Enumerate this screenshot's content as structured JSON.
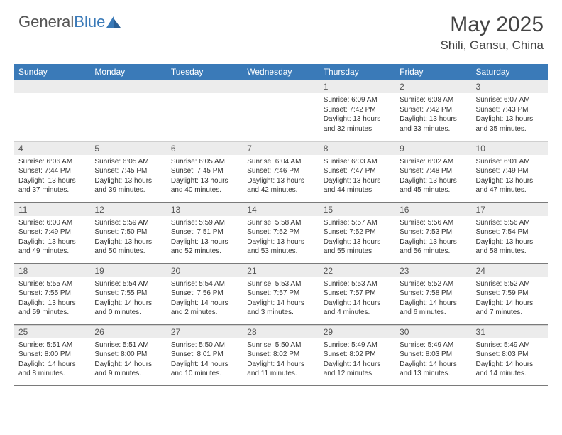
{
  "brand": {
    "general": "General",
    "blue": "Blue"
  },
  "title": "May 2025",
  "location": "Shili, Gansu, China",
  "colors": {
    "header_bg": "#3a7ab8",
    "header_fg": "#ffffff",
    "daynum_bg": "#ececec",
    "text": "#333333",
    "border": "#7a7a7a"
  },
  "weekday_headers": [
    "Sunday",
    "Monday",
    "Tuesday",
    "Wednesday",
    "Thursday",
    "Friday",
    "Saturday"
  ],
  "weeks": [
    [
      {
        "empty": true
      },
      {
        "empty": true
      },
      {
        "empty": true
      },
      {
        "empty": true
      },
      {
        "num": "1",
        "sunrise": "Sunrise: 6:09 AM",
        "sunset": "Sunset: 7:42 PM",
        "daylight": "Daylight: 13 hours and 32 minutes."
      },
      {
        "num": "2",
        "sunrise": "Sunrise: 6:08 AM",
        "sunset": "Sunset: 7:42 PM",
        "daylight": "Daylight: 13 hours and 33 minutes."
      },
      {
        "num": "3",
        "sunrise": "Sunrise: 6:07 AM",
        "sunset": "Sunset: 7:43 PM",
        "daylight": "Daylight: 13 hours and 35 minutes."
      }
    ],
    [
      {
        "num": "4",
        "sunrise": "Sunrise: 6:06 AM",
        "sunset": "Sunset: 7:44 PM",
        "daylight": "Daylight: 13 hours and 37 minutes."
      },
      {
        "num": "5",
        "sunrise": "Sunrise: 6:05 AM",
        "sunset": "Sunset: 7:45 PM",
        "daylight": "Daylight: 13 hours and 39 minutes."
      },
      {
        "num": "6",
        "sunrise": "Sunrise: 6:05 AM",
        "sunset": "Sunset: 7:45 PM",
        "daylight": "Daylight: 13 hours and 40 minutes."
      },
      {
        "num": "7",
        "sunrise": "Sunrise: 6:04 AM",
        "sunset": "Sunset: 7:46 PM",
        "daylight": "Daylight: 13 hours and 42 minutes."
      },
      {
        "num": "8",
        "sunrise": "Sunrise: 6:03 AM",
        "sunset": "Sunset: 7:47 PM",
        "daylight": "Daylight: 13 hours and 44 minutes."
      },
      {
        "num": "9",
        "sunrise": "Sunrise: 6:02 AM",
        "sunset": "Sunset: 7:48 PM",
        "daylight": "Daylight: 13 hours and 45 minutes."
      },
      {
        "num": "10",
        "sunrise": "Sunrise: 6:01 AM",
        "sunset": "Sunset: 7:49 PM",
        "daylight": "Daylight: 13 hours and 47 minutes."
      }
    ],
    [
      {
        "num": "11",
        "sunrise": "Sunrise: 6:00 AM",
        "sunset": "Sunset: 7:49 PM",
        "daylight": "Daylight: 13 hours and 49 minutes."
      },
      {
        "num": "12",
        "sunrise": "Sunrise: 5:59 AM",
        "sunset": "Sunset: 7:50 PM",
        "daylight": "Daylight: 13 hours and 50 minutes."
      },
      {
        "num": "13",
        "sunrise": "Sunrise: 5:59 AM",
        "sunset": "Sunset: 7:51 PM",
        "daylight": "Daylight: 13 hours and 52 minutes."
      },
      {
        "num": "14",
        "sunrise": "Sunrise: 5:58 AM",
        "sunset": "Sunset: 7:52 PM",
        "daylight": "Daylight: 13 hours and 53 minutes."
      },
      {
        "num": "15",
        "sunrise": "Sunrise: 5:57 AM",
        "sunset": "Sunset: 7:52 PM",
        "daylight": "Daylight: 13 hours and 55 minutes."
      },
      {
        "num": "16",
        "sunrise": "Sunrise: 5:56 AM",
        "sunset": "Sunset: 7:53 PM",
        "daylight": "Daylight: 13 hours and 56 minutes."
      },
      {
        "num": "17",
        "sunrise": "Sunrise: 5:56 AM",
        "sunset": "Sunset: 7:54 PM",
        "daylight": "Daylight: 13 hours and 58 minutes."
      }
    ],
    [
      {
        "num": "18",
        "sunrise": "Sunrise: 5:55 AM",
        "sunset": "Sunset: 7:55 PM",
        "daylight": "Daylight: 13 hours and 59 minutes."
      },
      {
        "num": "19",
        "sunrise": "Sunrise: 5:54 AM",
        "sunset": "Sunset: 7:55 PM",
        "daylight": "Daylight: 14 hours and 0 minutes."
      },
      {
        "num": "20",
        "sunrise": "Sunrise: 5:54 AM",
        "sunset": "Sunset: 7:56 PM",
        "daylight": "Daylight: 14 hours and 2 minutes."
      },
      {
        "num": "21",
        "sunrise": "Sunrise: 5:53 AM",
        "sunset": "Sunset: 7:57 PM",
        "daylight": "Daylight: 14 hours and 3 minutes."
      },
      {
        "num": "22",
        "sunrise": "Sunrise: 5:53 AM",
        "sunset": "Sunset: 7:57 PM",
        "daylight": "Daylight: 14 hours and 4 minutes."
      },
      {
        "num": "23",
        "sunrise": "Sunrise: 5:52 AM",
        "sunset": "Sunset: 7:58 PM",
        "daylight": "Daylight: 14 hours and 6 minutes."
      },
      {
        "num": "24",
        "sunrise": "Sunrise: 5:52 AM",
        "sunset": "Sunset: 7:59 PM",
        "daylight": "Daylight: 14 hours and 7 minutes."
      }
    ],
    [
      {
        "num": "25",
        "sunrise": "Sunrise: 5:51 AM",
        "sunset": "Sunset: 8:00 PM",
        "daylight": "Daylight: 14 hours and 8 minutes."
      },
      {
        "num": "26",
        "sunrise": "Sunrise: 5:51 AM",
        "sunset": "Sunset: 8:00 PM",
        "daylight": "Daylight: 14 hours and 9 minutes."
      },
      {
        "num": "27",
        "sunrise": "Sunrise: 5:50 AM",
        "sunset": "Sunset: 8:01 PM",
        "daylight": "Daylight: 14 hours and 10 minutes."
      },
      {
        "num": "28",
        "sunrise": "Sunrise: 5:50 AM",
        "sunset": "Sunset: 8:02 PM",
        "daylight": "Daylight: 14 hours and 11 minutes."
      },
      {
        "num": "29",
        "sunrise": "Sunrise: 5:49 AM",
        "sunset": "Sunset: 8:02 PM",
        "daylight": "Daylight: 14 hours and 12 minutes."
      },
      {
        "num": "30",
        "sunrise": "Sunrise: 5:49 AM",
        "sunset": "Sunset: 8:03 PM",
        "daylight": "Daylight: 14 hours and 13 minutes."
      },
      {
        "num": "31",
        "sunrise": "Sunrise: 5:49 AM",
        "sunset": "Sunset: 8:03 PM",
        "daylight": "Daylight: 14 hours and 14 minutes."
      }
    ]
  ]
}
